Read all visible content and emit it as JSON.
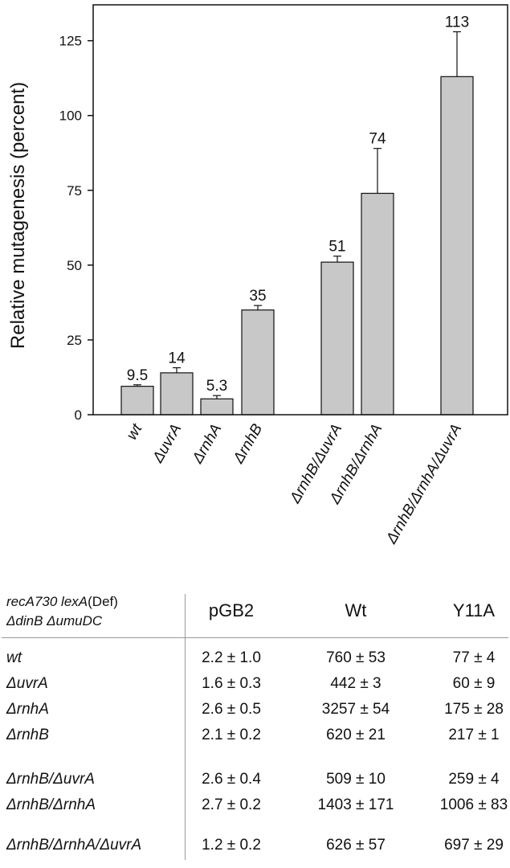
{
  "chart_data": {
    "type": "bar",
    "ylabel": "Relative mutagenesis (percent)",
    "ylim": [
      0,
      137
    ],
    "yticks": [
      0,
      25,
      50,
      75,
      100,
      125
    ],
    "categories": [
      "wt",
      "ΔuvrA",
      "ΔrnhA",
      "ΔrnhB",
      "ΔrnhB/ΔuvrA",
      "ΔrnhB/ΔrnhA",
      "ΔrnhB/ΔrnhA/ΔuvrA"
    ],
    "values": [
      9.5,
      14,
      5.3,
      35,
      51,
      74,
      113
    ],
    "value_labels": [
      "9.5",
      "14",
      "5.3",
      "35",
      "51",
      "74",
      "113"
    ],
    "error_upper": [
      10.0,
      15.7,
      6.4,
      36.5,
      53.0,
      89.0,
      128.0
    ],
    "bar_color": "#c8c8c8"
  },
  "table": {
    "header_line1": {
      "italic": "recA730 lexA",
      "plain": "(Def)"
    },
    "header_line2": "ΔdinB ΔumuDC",
    "columns": [
      "pGB2",
      "Wt",
      "Y11A"
    ],
    "rows": [
      {
        "label": "wt",
        "cells": [
          "2.2 ± 1.0",
          "760 ± 53",
          "77 ± 4"
        ]
      },
      {
        "label": "ΔuvrA",
        "cells": [
          "1.6 ± 0.3",
          "442 ± 3",
          "60 ± 9"
        ]
      },
      {
        "label": "ΔrnhA",
        "cells": [
          "2.6 ± 0.5",
          "3257 ± 54",
          "175 ± 28"
        ]
      },
      {
        "label": "ΔrnhB",
        "cells": [
          "2.1 ± 0.2",
          "620 ± 21",
          "217 ± 1"
        ]
      },
      {
        "label": "ΔrnhB/ΔuvrA",
        "cells": [
          "2.6 ± 0.4",
          "509 ± 10",
          "259 ± 4"
        ]
      },
      {
        "label": "ΔrnhB/ΔrnhA",
        "cells": [
          "2.7 ± 0.2",
          "1403 ± 171",
          "1006 ± 83"
        ]
      },
      {
        "label": "ΔrnhB/ΔrnhA/ΔuvrA",
        "cells": [
          "1.2 ± 0.2",
          "626 ± 57",
          "697 ± 29"
        ]
      }
    ]
  }
}
